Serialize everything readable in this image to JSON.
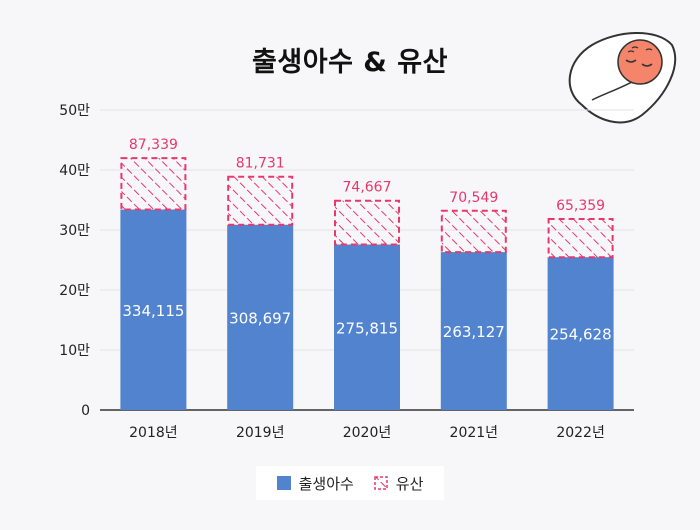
{
  "title": "출생아수 & 유산",
  "colors": {
    "births": "#5283cf",
    "miscarriage": "#e8386b",
    "background": "#f7f7f9"
  },
  "icons": [
    "swaddled-baby-illustration"
  ],
  "legend": {
    "births_label": "출생아수",
    "miscarriage_label": "유산"
  },
  "chart_data": {
    "type": "bar",
    "stacked": true,
    "title": "출생아수 & 유산",
    "categories": [
      "2018년",
      "2019년",
      "2020년",
      "2021년",
      "2022년"
    ],
    "series": [
      {
        "name": "출생아수",
        "values": [
          334115,
          308697,
          275815,
          263127,
          254628
        ],
        "labels": [
          "334,115",
          "308,697",
          "275,815",
          "263,127",
          "254,628"
        ],
        "fill": "solid"
      },
      {
        "name": "유산",
        "values": [
          87339,
          81731,
          74667,
          70549,
          65359
        ],
        "labels": [
          "87,339",
          "81,731",
          "74,667",
          "70,549",
          "65,359"
        ],
        "fill": "hatched"
      }
    ],
    "yticks": [
      0,
      100000,
      200000,
      300000,
      400000,
      500000
    ],
    "ytick_labels": [
      "0",
      "10만",
      "20만",
      "30만",
      "40만",
      "50만"
    ],
    "ylim": [
      0,
      500000
    ],
    "grid": true,
    "legend_position": "bottom"
  }
}
